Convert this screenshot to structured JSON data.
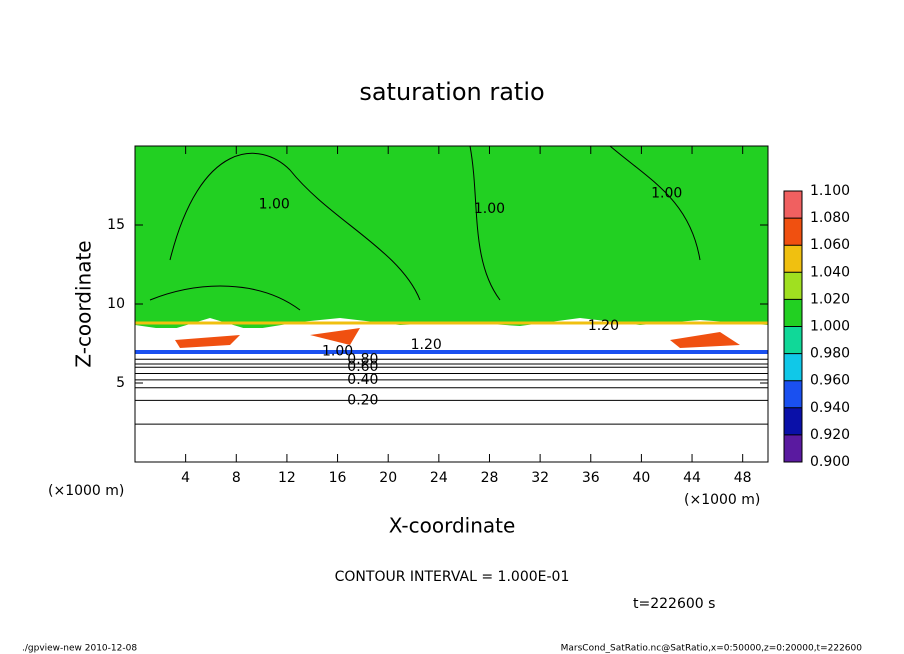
{
  "chart_data": {
    "type": "contour",
    "title": "saturation ratio",
    "xlabel": "X-coordinate",
    "ylabel": "Z-coordinate",
    "x_unit_left": "(×1000 m)",
    "x_unit_right": "(×1000 m)",
    "xlim": [
      0,
      50
    ],
    "ylim": [
      0,
      20
    ],
    "xticks": [
      4,
      8,
      12,
      16,
      20,
      24,
      28,
      32,
      36,
      40,
      44,
      48
    ],
    "yticks": [
      5,
      10,
      15
    ],
    "colorbar": {
      "levels": [
        {
          "value": 0.9,
          "label": "0.900"
        },
        {
          "value": 0.92,
          "label": "0.920"
        },
        {
          "value": 0.94,
          "label": "0.940"
        },
        {
          "value": 0.96,
          "label": "0.960"
        },
        {
          "value": 0.98,
          "label": "0.980"
        },
        {
          "value": 1.0,
          "label": "1.000"
        },
        {
          "value": 1.02,
          "label": "1.020"
        },
        {
          "value": 1.04,
          "label": "1.040"
        },
        {
          "value": 1.06,
          "label": "1.060"
        },
        {
          "value": 1.08,
          "label": "1.080"
        },
        {
          "value": 1.1,
          "label": "1.100"
        }
      ],
      "colors": [
        "#5a1aa0",
        "#0a10a8",
        "#1a50f0",
        "#10c8e8",
        "#10d898",
        "#22d022",
        "#a0e020",
        "#f0c010",
        "#f05010",
        "#f06060"
      ]
    },
    "contour_lines": [
      {
        "value": 0.1,
        "z": 2.4
      },
      {
        "value": 0.2,
        "z": 3.9
      },
      {
        "value": 0.3,
        "z": 4.7
      },
      {
        "value": 0.4,
        "z": 5.2
      },
      {
        "value": 0.5,
        "z": 5.6
      },
      {
        "value": 0.6,
        "z": 6.0
      },
      {
        "value": 0.7,
        "z": 6.2
      },
      {
        "value": 0.8,
        "z": 6.5
      }
    ],
    "contour_labels": [
      {
        "value": 1,
        "label": "1.00",
        "x": 11,
        "z": 16.3
      },
      {
        "value": 1,
        "label": "1.00",
        "x": 28,
        "z": 16
      },
      {
        "value": 1,
        "label": "1.00",
        "x": 42,
        "z": 17
      },
      {
        "value": 1,
        "label": "1.00",
        "x": 16,
        "z": 7
      },
      {
        "value": 1.2,
        "label": "1.20",
        "x": 23,
        "z": 7.4
      },
      {
        "value": 1.2,
        "label": "1.20",
        "x": 37,
        "z": 8.6
      },
      {
        "value": 0.2,
        "label": "0.20",
        "x": 18,
        "z": 3.9
      },
      {
        "value": 0.4,
        "label": "0.40",
        "x": 18,
        "z": 5.2
      },
      {
        "value": 0.6,
        "label": "0.60",
        "x": 18,
        "z": 6.0
      },
      {
        "value": 0.8,
        "label": "0.80",
        "x": 18,
        "z": 6.5
      }
    ],
    "interval_note": "CONTOUR INTERVAL = 1.000E-01",
    "time_note": "t=222600 s",
    "footer_left": "./gpview-new  2010-12-08",
    "footer_right": "MarsCond_SatRatio.nc@SatRatio,x=0:50000,z=0:20000,t=222600"
  }
}
